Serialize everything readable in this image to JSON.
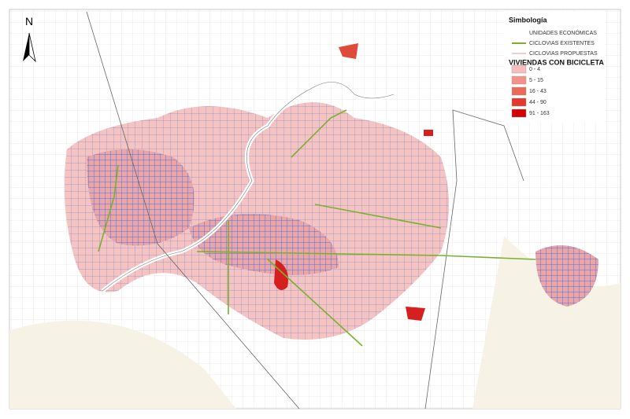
{
  "north_arrow": {
    "label": "N"
  },
  "legend": {
    "title": "Simbología",
    "items": [
      "UNIDADES ECONÓMICAS",
      "CICLOVIAS EXISTENTES",
      "CICLOVIAS PROPUESTAS"
    ],
    "section_title": "VIVIENDAS CON BICICLETA",
    "classes": [
      "0 - 4",
      "5 - 15",
      "16 - 43",
      "44 - 90",
      "91 - 163"
    ]
  }
}
